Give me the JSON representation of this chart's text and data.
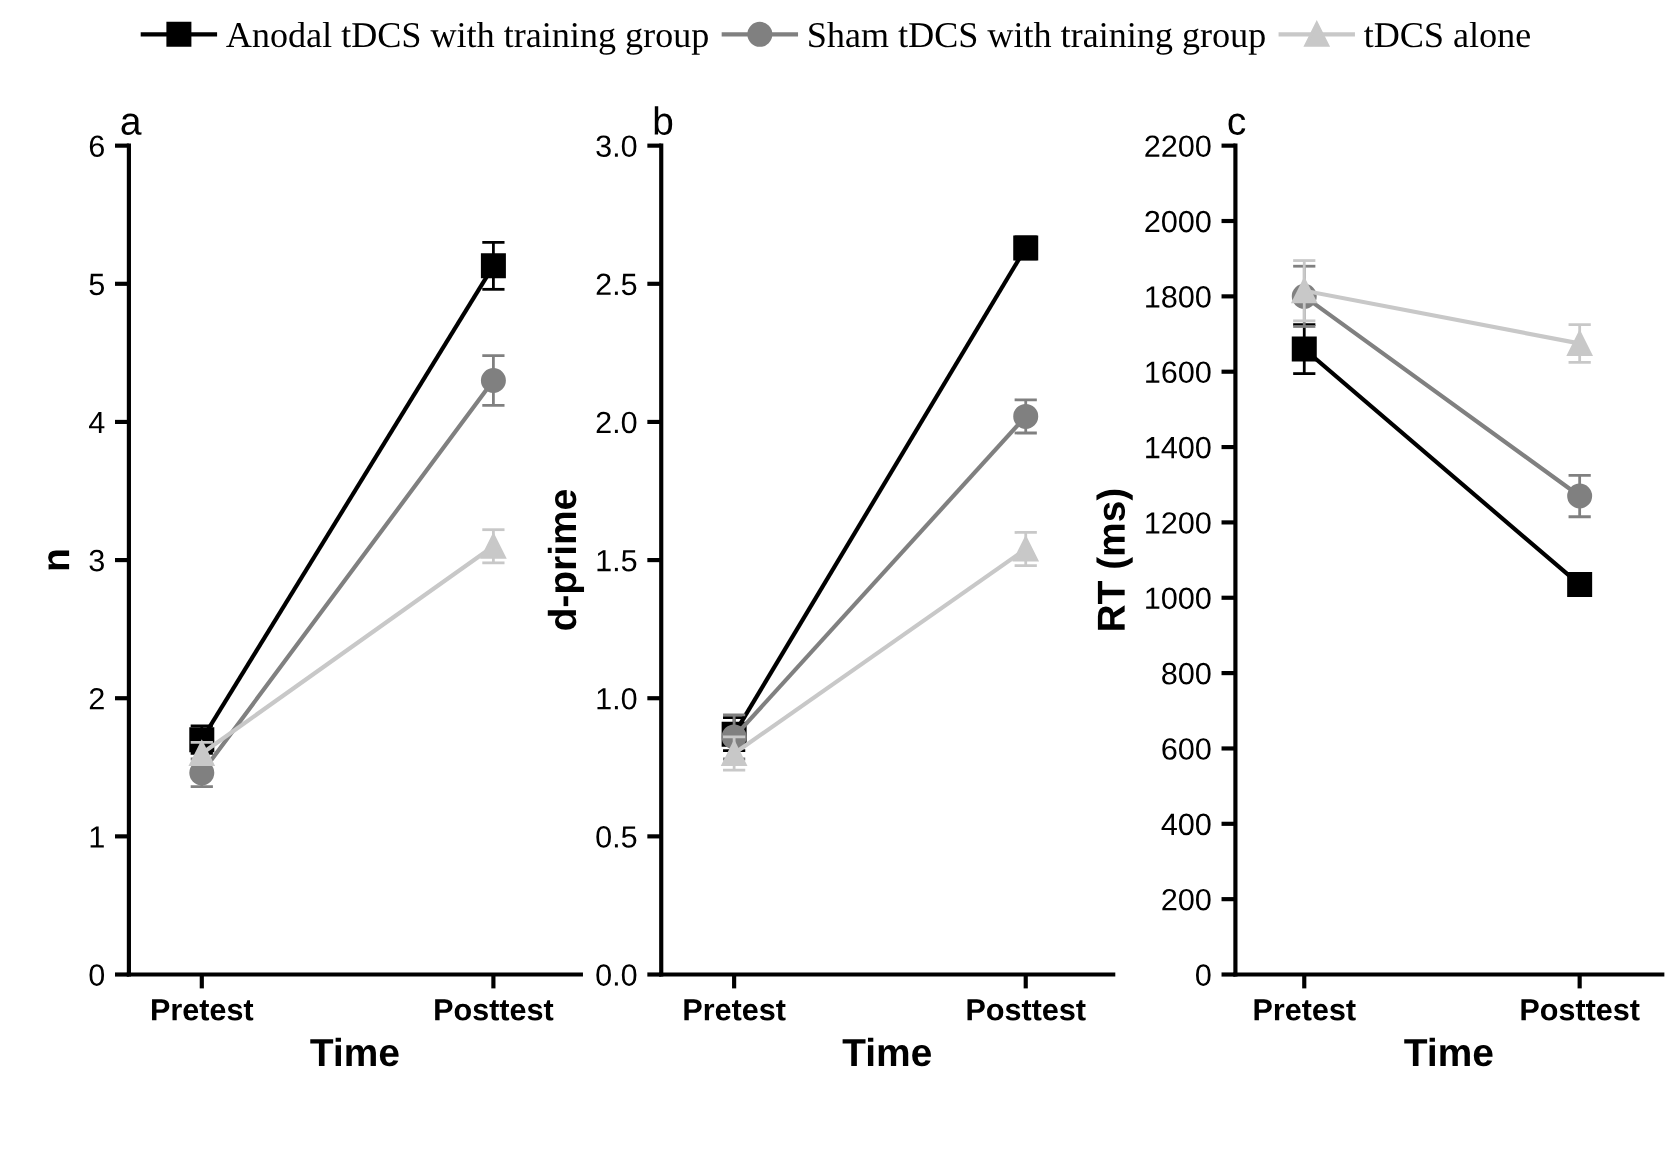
{
  "chart_data": [
    {
      "type": "line",
      "title": "a",
      "xlabel": "Time",
      "ylabel": "n",
      "categories": [
        "Pretest",
        "Posttest"
      ],
      "ylim": [
        0,
        6
      ],
      "yticks": [
        0,
        1,
        2,
        3,
        4,
        5,
        6
      ],
      "grid": false,
      "legend": "top",
      "series": [
        {
          "name": "Anodal tDCS with training group",
          "color": "#000000",
          "marker": "square",
          "values": [
            1.7,
            5.13
          ],
          "errors": [
            0.1,
            0.17
          ]
        },
        {
          "name": "Sham tDCS with training group",
          "color": "#808080",
          "marker": "circle",
          "values": [
            1.46,
            4.3
          ],
          "errors": [
            0.1,
            0.18
          ]
        },
        {
          "name": "tDCS alone",
          "color": "#c8c8c8",
          "marker": "triangle",
          "values": [
            1.6,
            3.1
          ],
          "errors": [
            0.08,
            0.12
          ]
        }
      ]
    },
    {
      "type": "line",
      "title": "b",
      "xlabel": "Time",
      "ylabel": "d-prime",
      "categories": [
        "Pretest",
        "Posttest"
      ],
      "ylim": [
        0,
        3
      ],
      "yticks": [
        {
          "value": 0,
          "label": "0.0"
        },
        0.5,
        {
          "value": 1,
          "label": "1.0"
        },
        1.5,
        {
          "value": 2,
          "label": "2.0"
        },
        2.5,
        {
          "value": 3,
          "label": "3.0"
        }
      ],
      "grid": false,
      "series": [
        {
          "color": "#000000",
          "marker": "square",
          "values": [
            0.87,
            2.63
          ],
          "errors": [
            0.06,
            0.04
          ]
        },
        {
          "color": "#808080",
          "marker": "circle",
          "values": [
            0.86,
            2.02
          ],
          "errors": [
            0.08,
            0.06
          ]
        },
        {
          "color": "#c8c8c8",
          "marker": "triangle",
          "values": [
            0.8,
            1.54
          ],
          "errors": [
            0.06,
            0.06
          ]
        }
      ]
    },
    {
      "type": "line",
      "title": "c",
      "xlabel": "Time",
      "ylabel": "RT (ms)",
      "categories": [
        "Pretest",
        "Posttest"
      ],
      "ylim": [
        0,
        2200
      ],
      "yticks": [
        0,
        200,
        400,
        600,
        800,
        1000,
        1200,
        1400,
        1600,
        1800,
        2000,
        2200
      ],
      "grid": false,
      "series": [
        {
          "color": "#000000",
          "marker": "square",
          "values": [
            1660,
            1035
          ],
          "errors": [
            65,
            25
          ]
        },
        {
          "color": "#808080",
          "marker": "circle",
          "values": [
            1800,
            1270
          ],
          "errors": [
            80,
            55
          ]
        },
        {
          "color": "#c8c8c8",
          "marker": "triangle",
          "values": [
            1815,
            1675
          ],
          "errors": [
            80,
            50
          ]
        }
      ]
    }
  ]
}
